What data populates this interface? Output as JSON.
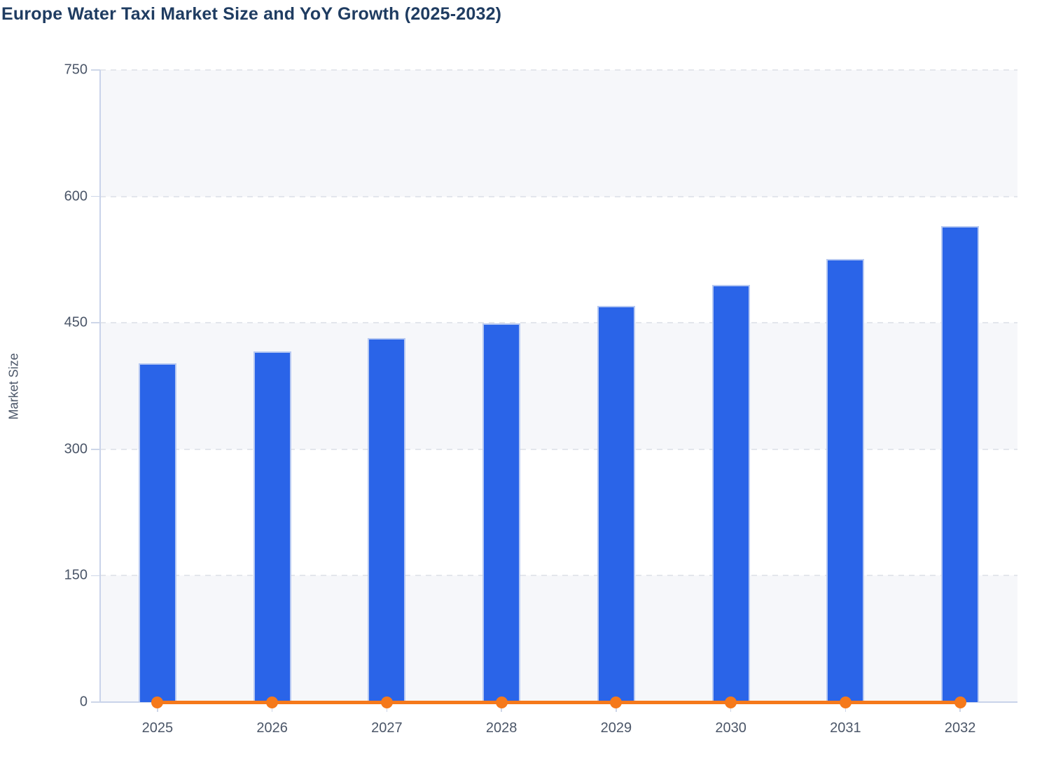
{
  "chart_data": {
    "type": "bar",
    "title": "Europe Water Taxi Market Size and YoY Growth (2025-2032)",
    "categories": [
      "2025",
      "2026",
      "2027",
      "2028",
      "2029",
      "2030",
      "2031",
      "2032"
    ],
    "series": [
      {
        "name": "Market Size",
        "type": "bar",
        "values": [
          402,
          416,
          432,
          449,
          470,
          495,
          526,
          565
        ]
      },
      {
        "name": "YoY Growth",
        "type": "line",
        "values": [
          0,
          0,
          0,
          0,
          0,
          0,
          0,
          0
        ]
      }
    ],
    "xlabel": "",
    "ylabel": "Market Size",
    "ylim": [
      0,
      750
    ],
    "yticks": [
      0,
      150,
      300,
      450,
      600,
      750
    ],
    "grid": "horizontal dashed gridlines",
    "legend": "none",
    "plot_background": "alternating horizontal bands"
  },
  "colors": {
    "title": "#1f3c61",
    "axis_label": "#4b5668",
    "bar_fill": "#2a64e8",
    "bar_border": "#b7c9f2",
    "line": "#f5791b",
    "marker": "#f5791b",
    "band_light": "#f6f7fa",
    "band_white": "#ffffff",
    "gridline": "#e3e6ec",
    "axis_line": "#c9d3ea",
    "tick": "#cdd6e8"
  }
}
